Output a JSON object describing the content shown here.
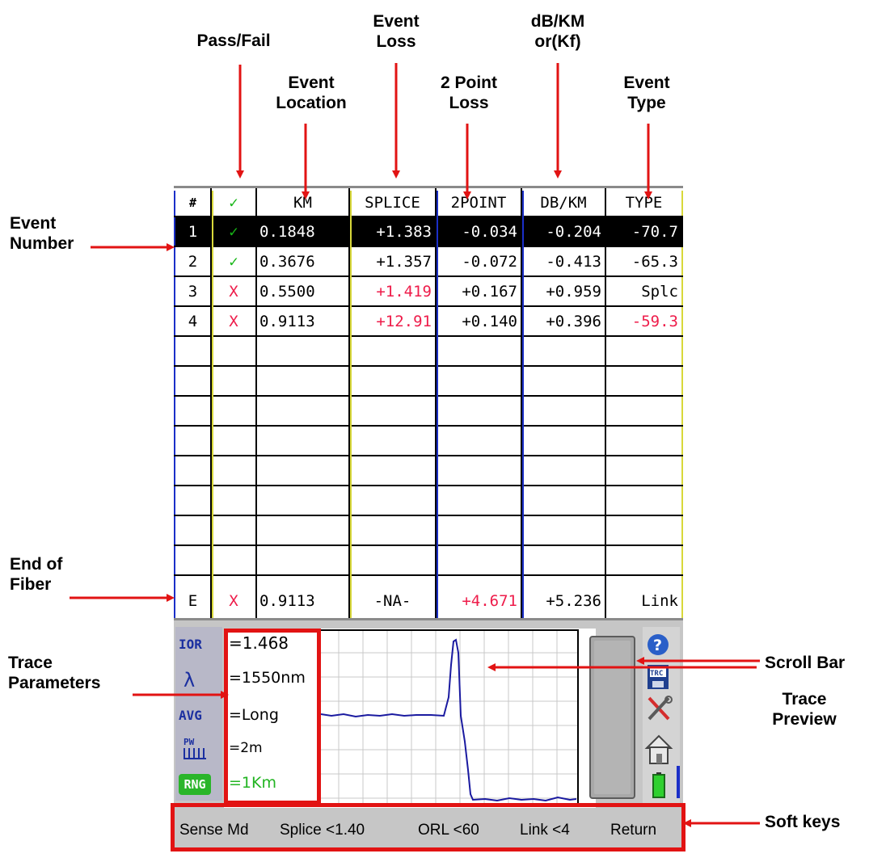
{
  "callouts": {
    "pass_fail": "Pass/Fail",
    "event_loss": [
      "Event",
      "Loss"
    ],
    "dbkm": [
      "dB/KM",
      "or(Kf)"
    ],
    "event_location": [
      "Event",
      "Location"
    ],
    "two_point_loss": [
      "2 Point",
      "Loss"
    ],
    "event_type": [
      "Event",
      "Type"
    ],
    "event_number": [
      "Event",
      "Number"
    ],
    "end_of_fiber": [
      "End of",
      "Fiber"
    ],
    "trace_parameters": [
      "Trace",
      "Parameters"
    ],
    "scroll_bar": "Scroll Bar",
    "trace_preview": [
      "Trace",
      "Preview"
    ],
    "soft_keys": "Soft keys"
  },
  "table": {
    "headers": [
      "#",
      "✓",
      "KM",
      "SPLICE",
      "2POINT",
      "DB/KM",
      "TYPE"
    ],
    "rows": [
      {
        "num": "1",
        "pf": "✓",
        "km": "0.1848",
        "splice": "+1.383",
        "twopoint": "-0.034",
        "dbkm": "-0.204",
        "type": "-70.7"
      },
      {
        "num": "2",
        "pf": "✓",
        "km": "0.3676",
        "splice": "+1.357",
        "twopoint": "-0.072",
        "dbkm": "-0.413",
        "type": "-65.3"
      },
      {
        "num": "3",
        "pf": "X",
        "km": "0.5500",
        "splice": "+1.419",
        "twopoint": "+0.167",
        "dbkm": "+0.959",
        "type": "Splc"
      },
      {
        "num": "4",
        "pf": "X",
        "km": "0.9113",
        "splice": "+12.91",
        "twopoint": "+0.140",
        "dbkm": "+0.396",
        "type": "-59.3"
      }
    ],
    "end_row": {
      "num": "E",
      "pf": "X",
      "km": "0.9113",
      "splice": "-NA-",
      "twopoint": "+4.671",
      "dbkm": "+5.236",
      "type": "Link"
    }
  },
  "params": {
    "labels": [
      "IOR",
      "λ",
      "AVG",
      "PW",
      "RNG"
    ],
    "values": [
      "=1.468",
      "=1550nm",
      "=Long",
      "=2m",
      "=1Km"
    ]
  },
  "soft_keys": [
    "Sense Md",
    "Splice <1.40",
    "ORL <60",
    "Link <4",
    "Return"
  ],
  "icons": [
    "help-icon",
    "save-trc-icon",
    "tools-icon",
    "home-icon",
    "battery-icon"
  ],
  "colors": {
    "fail": "#ee1c4a",
    "pass": "#17b617",
    "annotation": "#e21313",
    "trace": "#1a1aa0"
  }
}
